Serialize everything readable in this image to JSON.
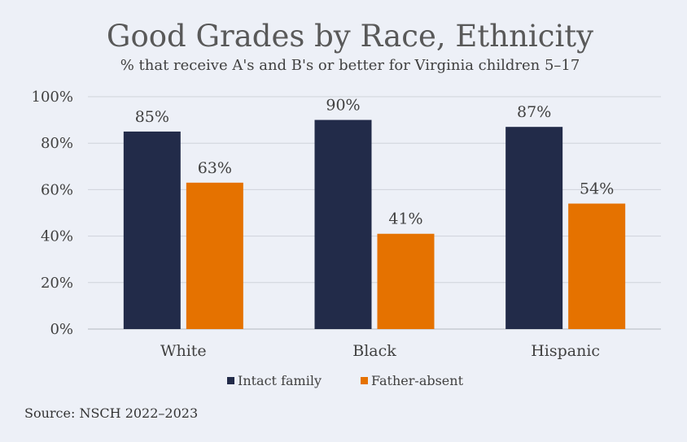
{
  "chart_data": {
    "type": "bar",
    "title": "Good Grades by Race, Ethnicity",
    "subtitle": "% that receive A's and B's or better for Virginia children 5–17",
    "categories": [
      "White",
      "Black",
      "Hispanic"
    ],
    "series": [
      {
        "name": "Intact family",
        "values": [
          85,
          90,
          87
        ],
        "labels": [
          "85%",
          "90%",
          "87%"
        ],
        "color": "#222b49"
      },
      {
        "name": "Father-absent",
        "values": [
          63,
          41,
          54
        ],
        "labels": [
          "63%",
          "41%",
          "54%"
        ],
        "color": "#e57200"
      }
    ],
    "yticks": [
      {
        "value": 0,
        "label": "0%"
      },
      {
        "value": 20,
        "label": "20%"
      },
      {
        "value": 40,
        "label": "40%"
      },
      {
        "value": 60,
        "label": "60%"
      },
      {
        "value": 80,
        "label": "80%"
      },
      {
        "value": 100,
        "label": "100%"
      }
    ],
    "ylim": [
      0,
      100
    ],
    "grid": true,
    "legend": "bottom",
    "source": "Source: NSCH 2022–2023"
  }
}
